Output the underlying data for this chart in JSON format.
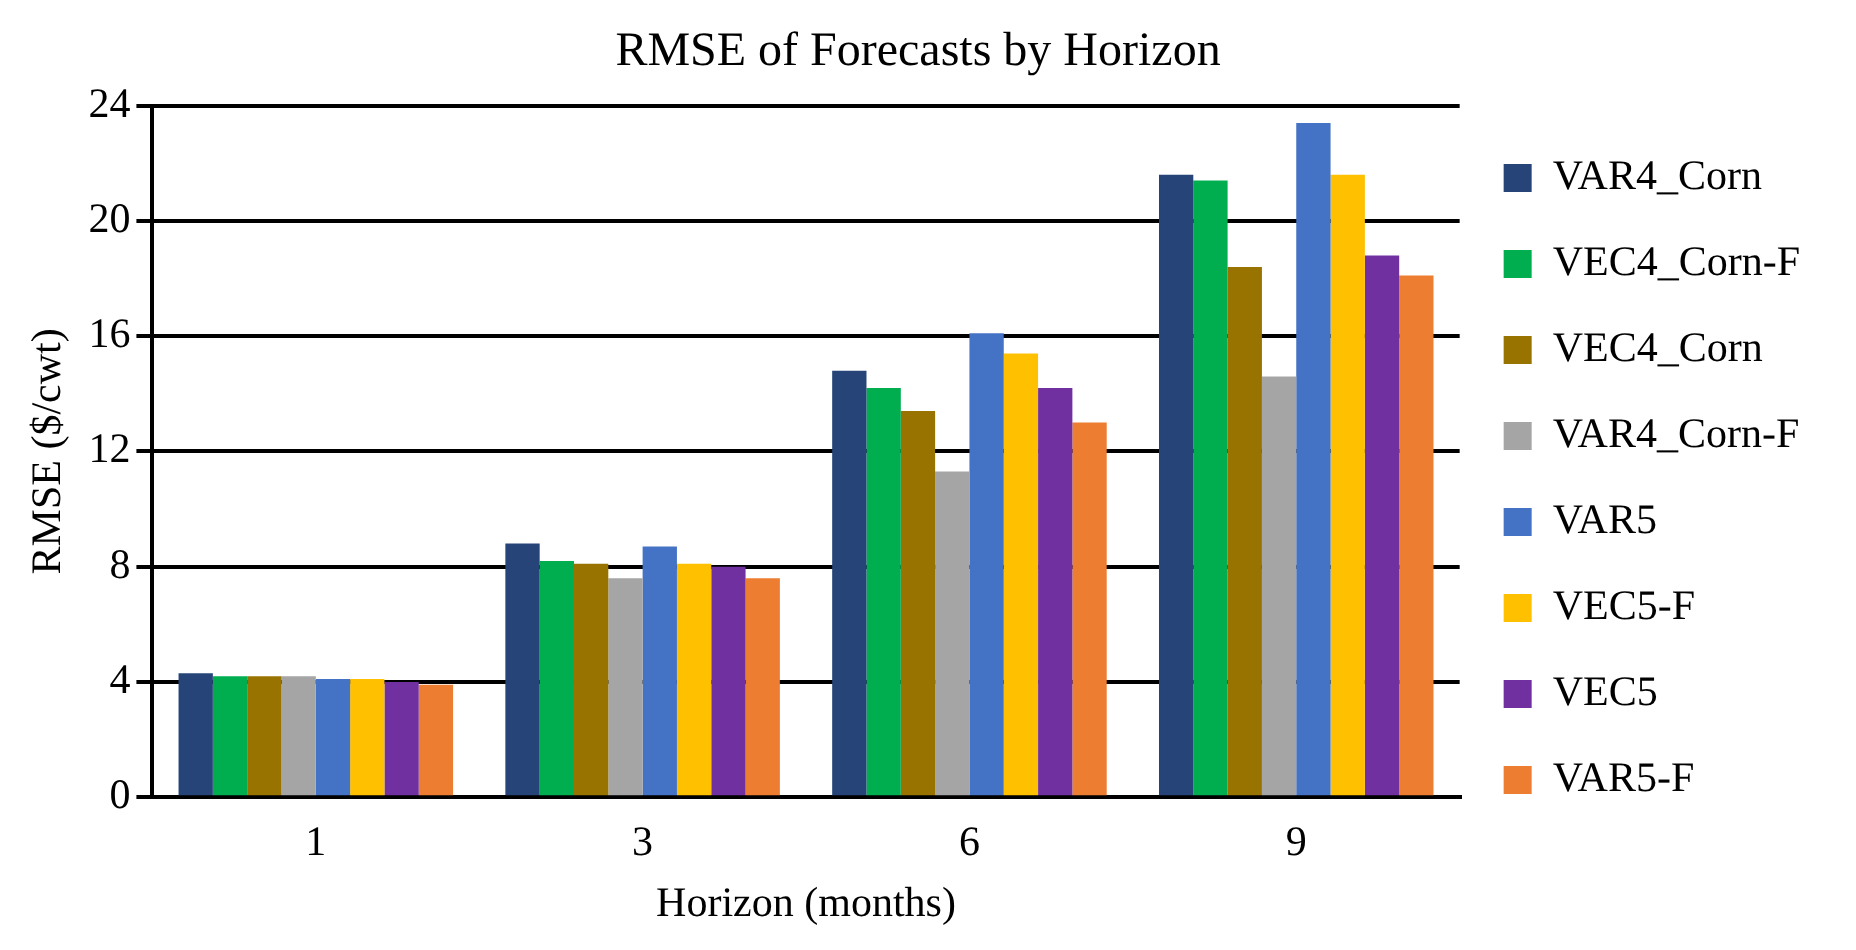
{
  "chart_data": {
    "type": "bar",
    "title": "RMSE of Forecasts by Horizon",
    "xlabel": "Horizon (months)",
    "ylabel": "RMSE ($/cwt)",
    "categories": [
      "1",
      "3",
      "6",
      "9"
    ],
    "series": [
      {
        "name": "VAR4_Corn",
        "color": "#264478",
        "values": [
          4.3,
          8.8,
          14.8,
          21.6
        ]
      },
      {
        "name": "VEC4_Corn-F",
        "color": "#00ad4f",
        "values": [
          4.2,
          8.2,
          14.2,
          21.4
        ]
      },
      {
        "name": "VEC4_Corn",
        "color": "#997300",
        "values": [
          4.2,
          8.1,
          13.4,
          18.4
        ]
      },
      {
        "name": "VAR4_Corn-F",
        "color": "#a5a5a5",
        "values": [
          4.2,
          7.6,
          11.3,
          14.6
        ]
      },
      {
        "name": "VAR5",
        "color": "#4472c4",
        "values": [
          4.1,
          8.7,
          16.1,
          23.4
        ]
      },
      {
        "name": "VEC5-F",
        "color": "#ffc000",
        "values": [
          4.1,
          8.1,
          15.4,
          21.6
        ]
      },
      {
        "name": "VEC5",
        "color": "#7030a0",
        "values": [
          4.0,
          8.0,
          14.2,
          18.8
        ]
      },
      {
        "name": "VAR5-F",
        "color": "#ed7d31",
        "values": [
          3.9,
          7.6,
          13.0,
          18.1
        ]
      }
    ],
    "ylim": [
      0,
      24
    ],
    "yticks": [
      0,
      4,
      8,
      12,
      16,
      20,
      24
    ],
    "grid": "y",
    "legend": "right"
  }
}
